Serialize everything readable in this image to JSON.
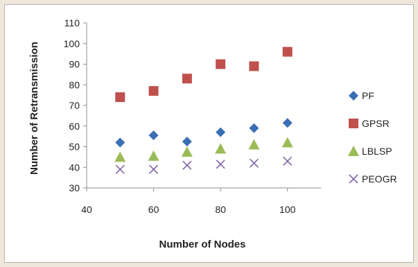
{
  "chart_data": {
    "type": "scatter",
    "xlabel": "Number of Nodes",
    "ylabel": "Number of Retransmission",
    "xlim": [
      40,
      110
    ],
    "ylim": [
      30,
      110
    ],
    "x_ticks": [
      40,
      60,
      80,
      100
    ],
    "y_ticks": [
      30,
      40,
      50,
      60,
      70,
      80,
      90,
      100,
      110
    ],
    "grid": false,
    "legend_position": "right",
    "x": [
      50,
      60,
      70,
      80,
      90,
      100
    ],
    "series": [
      {
        "name": "PF",
        "marker": "diamond",
        "color": "#3a6fb5",
        "values": [
          52,
          55.5,
          52.5,
          57,
          59,
          61.5
        ]
      },
      {
        "name": "GPSR",
        "marker": "square",
        "color": "#c0504d",
        "values": [
          74,
          77,
          83,
          90,
          89,
          96
        ]
      },
      {
        "name": "LBLSP",
        "marker": "triangle",
        "color": "#9bbb59",
        "values": [
          45,
          45.5,
          47.5,
          49,
          51,
          52
        ]
      },
      {
        "name": "PEOGR",
        "marker": "cross",
        "color": "#8064a2",
        "values": [
          39,
          39,
          41,
          41.5,
          42,
          43
        ]
      }
    ]
  }
}
